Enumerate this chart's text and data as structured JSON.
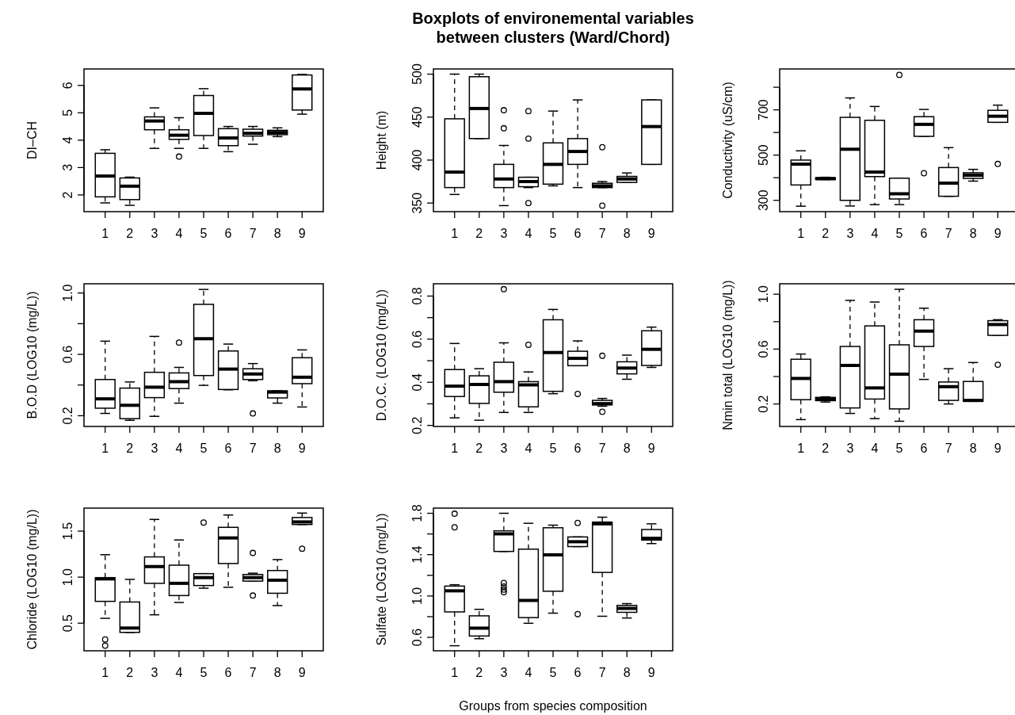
{
  "chart_data": [
    {
      "type": "box",
      "ylabel": "DI–CH",
      "categories": [
        "1",
        "2",
        "3",
        "4",
        "5",
        "6",
        "7",
        "8",
        "9"
      ],
      "ylim": [
        1.39,
        6.6
      ],
      "yticks": [
        2,
        3,
        4,
        5,
        6
      ],
      "boxes": [
        {
          "low": 1.71,
          "q1": 1.93,
          "median": 2.69,
          "q3": 3.52,
          "high": 3.65
        },
        {
          "low": 1.62,
          "q1": 1.83,
          "median": 2.32,
          "q3": 2.62,
          "high": 2.65
        },
        {
          "low": 3.7,
          "q1": 4.38,
          "median": 4.7,
          "q3": 4.85,
          "high": 5.18
        },
        {
          "low": 3.7,
          "q1": 4.03,
          "median": 4.18,
          "q3": 4.38,
          "high": 4.82,
          "outliers": [
            3.4
          ]
        },
        {
          "low": 3.7,
          "q1": 4.17,
          "median": 4.98,
          "q3": 5.63,
          "high": 5.88
        },
        {
          "low": 3.58,
          "q1": 3.8,
          "median": 4.08,
          "q3": 4.42,
          "high": 4.5
        },
        {
          "low": 3.85,
          "q1": 4.15,
          "median": 4.25,
          "q3": 4.4,
          "high": 4.5
        },
        {
          "low": 4.13,
          "q1": 4.2,
          "median": 4.28,
          "q3": 4.36,
          "high": 4.45
        },
        {
          "low": 4.95,
          "q1": 5.1,
          "median": 5.87,
          "q3": 6.38,
          "high": 6.4
        }
      ]
    },
    {
      "type": "box",
      "title": "Boxplots of environemental variables\nbetween clusters (Ward/Chord)",
      "ylabel": "Height (m)",
      "categories": [
        "1",
        "2",
        "3",
        "4",
        "5",
        "6",
        "7",
        "8",
        "9"
      ],
      "ylim": [
        340,
        506
      ],
      "yticks": [
        350,
        400,
        450,
        500
      ],
      "boxes": [
        {
          "low": 360,
          "q1": 368,
          "median": 386,
          "q3": 448,
          "high": 500
        },
        {
          "low": 425,
          "q1": 425,
          "median": 460,
          "q3": 497,
          "high": 500
        },
        {
          "low": 347,
          "q1": 368,
          "median": 378,
          "q3": 395,
          "high": 417,
          "outliers": [
            437,
            458
          ]
        },
        {
          "low": 368,
          "q1": 369,
          "median": 375,
          "q3": 380,
          "high": 380,
          "outliers": [
            350,
            425,
            457
          ]
        },
        {
          "low": 370,
          "q1": 372,
          "median": 395,
          "q3": 420,
          "high": 457
        },
        {
          "low": 368,
          "q1": 395,
          "median": 410,
          "q3": 425,
          "high": 470
        },
        {
          "low": 368,
          "q1": 368,
          "median": 370,
          "q3": 373,
          "high": 375,
          "outliers": [
            347,
            415
          ]
        },
        {
          "low": 374,
          "q1": 374,
          "median": 378,
          "q3": 381,
          "high": 385
        },
        {
          "low": 395,
          "q1": 395,
          "median": 439,
          "q3": 470,
          "high": 470
        }
      ]
    },
    {
      "type": "box",
      "ylabel": "Conductivity (uS/cm)",
      "categories": [
        "1",
        "2",
        "3",
        "4",
        "5",
        "6",
        "7",
        "8",
        "9"
      ],
      "ylim": [
        250,
        881
      ],
      "yticks": [
        300,
        {
          "value": 400,
          "label": null
        },
        500,
        {
          "value": 600,
          "label": null
        },
        700,
        {
          "value": 800,
          "label": null
        }
      ],
      "boxes": [
        {
          "low": 274,
          "q1": 368,
          "median": 460,
          "q3": 478,
          "high": 519
        },
        {
          "low": 392,
          "q1": 392,
          "median": 396,
          "q3": 400,
          "high": 402
        },
        {
          "low": 275,
          "q1": 300,
          "median": 526,
          "q3": 667,
          "high": 753
        },
        {
          "low": 281,
          "q1": 405,
          "median": 425,
          "q3": 654,
          "high": 715
        },
        {
          "low": 281,
          "q1": 306,
          "median": 329,
          "q3": 398,
          "high": 398,
          "outliers": [
            855
          ]
        },
        {
          "low": 583,
          "q1": 583,
          "median": 636,
          "q3": 670,
          "high": 702,
          "outliers": [
            420
          ]
        },
        {
          "low": 318,
          "q1": 318,
          "median": 376,
          "q3": 445,
          "high": 533
        },
        {
          "low": 385,
          "q1": 397,
          "median": 411,
          "q3": 422,
          "high": 437
        },
        {
          "low": 645,
          "q1": 645,
          "median": 672,
          "q3": 698,
          "high": 721,
          "outliers": [
            461
          ]
        }
      ]
    },
    {
      "type": "box",
      "ylabel": "B.O.D (LOG10 (mg/L))",
      "categories": [
        "1",
        "2",
        "3",
        "4",
        "5",
        "6",
        "7",
        "8",
        "9"
      ],
      "ylim": [
        0.13,
        1.06
      ],
      "yticks": [
        0.2,
        {
          "value": 0.4,
          "label": null
        },
        0.6,
        {
          "value": 0.8,
          "label": null
        },
        {
          "value": 1,
          "label": "1.0"
        }
      ],
      "boxes": [
        {
          "low": 0.215,
          "q1": 0.249,
          "median": 0.31,
          "q3": 0.436,
          "high": 0.686
        },
        {
          "low": 0.17,
          "q1": 0.181,
          "median": 0.268,
          "q3": 0.38,
          "high": 0.42
        },
        {
          "low": 0.196,
          "q1": 0.318,
          "median": 0.386,
          "q3": 0.483,
          "high": 0.717
        },
        {
          "low": 0.282,
          "q1": 0.377,
          "median": 0.422,
          "q3": 0.479,
          "high": 0.515,
          "outliers": [
            0.677
          ]
        },
        {
          "low": 0.398,
          "q1": 0.462,
          "median": 0.702,
          "q3": 0.926,
          "high": 1.023
        },
        {
          "low": 0.369,
          "q1": 0.371,
          "median": 0.504,
          "q3": 0.622,
          "high": 0.667
        },
        {
          "low": 0.428,
          "q1": 0.436,
          "median": 0.472,
          "q3": 0.506,
          "high": 0.54,
          "outliers": [
            0.215
          ]
        },
        {
          "low": 0.282,
          "q1": 0.316,
          "median": 0.354,
          "q3": 0.362,
          "high": 0.362
        },
        {
          "low": 0.257,
          "q1": 0.409,
          "median": 0.451,
          "q3": 0.578,
          "high": 0.629
        }
      ]
    },
    {
      "type": "box",
      "ylabel": "D.O.C. (LOG10 (mg/L))",
      "categories": [
        "1",
        "2",
        "3",
        "4",
        "5",
        "6",
        "7",
        "8",
        "9"
      ],
      "ylim": [
        0.195,
        0.857
      ],
      "yticks": [
        0.2,
        {
          "value": 0.3,
          "label": null
        },
        0.4,
        {
          "value": 0.5,
          "label": null
        },
        0.6,
        {
          "value": 0.7,
          "label": null
        },
        0.8
      ],
      "boxes": [
        {
          "low": 0.235,
          "q1": 0.334,
          "median": 0.382,
          "q3": 0.459,
          "high": 0.58
        },
        {
          "low": 0.224,
          "q1": 0.302,
          "median": 0.39,
          "q3": 0.43,
          "high": 0.463
        },
        {
          "low": 0.26,
          "q1": 0.354,
          "median": 0.403,
          "q3": 0.493,
          "high": 0.583,
          "outliers": [
            0.832
          ]
        },
        {
          "low": 0.26,
          "q1": 0.286,
          "median": 0.388,
          "q3": 0.403,
          "high": 0.448,
          "outliers": [
            0.574
          ]
        },
        {
          "low": 0.347,
          "q1": 0.358,
          "median": 0.538,
          "q3": 0.69,
          "high": 0.738
        },
        {
          "low": 0.477,
          "q1": 0.477,
          "median": 0.511,
          "q3": 0.544,
          "high": 0.592,
          "outliers": [
            0.346
          ]
        },
        {
          "low": 0.289,
          "q1": 0.295,
          "median": 0.301,
          "q3": 0.316,
          "high": 0.325,
          "outliers": [
            0.523,
            0.263
          ]
        },
        {
          "low": 0.414,
          "q1": 0.439,
          "median": 0.466,
          "q3": 0.495,
          "high": 0.526
        },
        {
          "low": 0.469,
          "q1": 0.478,
          "median": 0.553,
          "q3": 0.639,
          "high": 0.656
        }
      ]
    },
    {
      "type": "box",
      "ylabel": "Nmin total (LOG10 (mg/L))",
      "categories": [
        "1",
        "2",
        "3",
        "4",
        "5",
        "6",
        "7",
        "8",
        "9"
      ],
      "ylim": [
        0.036,
        1.076
      ],
      "yticks": [
        0.2,
        {
          "value": 0.4,
          "label": null
        },
        0.6,
        {
          "value": 0.8,
          "label": null
        },
        {
          "value": 1,
          "label": "1.0"
        }
      ],
      "boxes": [
        {
          "low": 0.086,
          "q1": 0.231,
          "median": 0.386,
          "q3": 0.526,
          "high": 0.564
        },
        {
          "low": 0.214,
          "q1": 0.224,
          "median": 0.236,
          "q3": 0.248,
          "high": 0.252
        },
        {
          "low": 0.131,
          "q1": 0.171,
          "median": 0.481,
          "q3": 0.619,
          "high": 0.955
        },
        {
          "low": 0.093,
          "q1": 0.236,
          "median": 0.317,
          "q3": 0.769,
          "high": 0.943
        },
        {
          "low": 0.074,
          "q1": 0.164,
          "median": 0.417,
          "q3": 0.631,
          "high": 1.036
        },
        {
          "low": 0.379,
          "q1": 0.619,
          "median": 0.731,
          "q3": 0.814,
          "high": 0.898
        },
        {
          "low": 0.2,
          "q1": 0.226,
          "median": 0.326,
          "q3": 0.36,
          "high": 0.457
        },
        {
          "low": 0.219,
          "q1": 0.219,
          "median": 0.226,
          "q3": 0.364,
          "high": 0.502
        },
        {
          "low": 0.7,
          "q1": 0.7,
          "median": 0.779,
          "q3": 0.807,
          "high": 0.814,
          "outliers": [
            0.486
          ]
        }
      ]
    },
    {
      "type": "box",
      "ylabel": "Chloride (LOG10 (mg/L))",
      "categories": [
        "1",
        "2",
        "3",
        "4",
        "5",
        "6",
        "7",
        "8",
        "9"
      ],
      "ylim": [
        0.2,
        1.75
      ],
      "yticks": [
        0.5,
        {
          "value": 1,
          "label": "1.0"
        },
        1.5
      ],
      "boxes": [
        {
          "low": 0.553,
          "q1": 0.737,
          "median": 0.981,
          "q3": 0.995,
          "high": 1.244,
          "outliers": [
            0.323,
            0.256
          ]
        },
        {
          "low": 0.4,
          "q1": 0.4,
          "median": 0.447,
          "q3": 0.73,
          "high": 0.976
        },
        {
          "low": 0.591,
          "q1": 0.933,
          "median": 1.115,
          "q3": 1.22,
          "high": 1.627
        },
        {
          "low": 0.725,
          "q1": 0.8,
          "median": 0.933,
          "q3": 1.13,
          "high": 1.404
        },
        {
          "low": 0.88,
          "q1": 0.909,
          "median": 0.995,
          "q3": 1.038,
          "high": 1.038,
          "outliers": [
            1.593
          ]
        },
        {
          "low": 0.89,
          "q1": 1.148,
          "median": 1.426,
          "q3": 1.541,
          "high": 1.675
        },
        {
          "low": 0.957,
          "q1": 0.957,
          "median": 0.995,
          "q3": 1.029,
          "high": 1.043,
          "outliers": [
            1.263,
            0.8
          ]
        },
        {
          "low": 0.691,
          "q1": 0.825,
          "median": 0.967,
          "q3": 1.072,
          "high": 1.191
        },
        {
          "low": 1.572,
          "q1": 1.572,
          "median": 1.6,
          "q3": 1.648,
          "high": 1.696,
          "outliers": [
            1.309
          ]
        }
      ]
    },
    {
      "type": "box",
      "ylabel": "Sulfate (LOG10 (mg/L))",
      "xlabel": "Groups from species composition",
      "categories": [
        "1",
        "2",
        "3",
        "4",
        "5",
        "6",
        "7",
        "8",
        "9"
      ],
      "ylim": [
        0.47,
        1.85
      ],
      "yticks": [
        0.6,
        {
          "value": 0.8,
          "label": null
        },
        {
          "value": 1,
          "label": "1.0"
        },
        {
          "value": 1.2,
          "label": null
        },
        1.4,
        {
          "value": 1.6,
          "label": null
        },
        1.8
      ],
      "boxes": [
        {
          "low": 0.519,
          "q1": 0.846,
          "median": 1.05,
          "q3": 1.096,
          "high": 1.109,
          "outliers": [
            1.796,
            1.664
          ]
        },
        {
          "low": 0.587,
          "q1": 0.613,
          "median": 0.689,
          "q3": 0.808,
          "high": 0.871
        },
        {
          "low": 1.431,
          "q1": 1.431,
          "median": 1.601,
          "q3": 1.63,
          "high": 1.8,
          "outliers": [
            1.126,
            1.092,
            1.062,
            1.037
          ]
        },
        {
          "low": 0.736,
          "q1": 0.791,
          "median": 0.957,
          "q3": 1.453,
          "high": 1.703
        },
        {
          "low": 0.834,
          "q1": 1.046,
          "median": 1.398,
          "q3": 1.66,
          "high": 1.685
        },
        {
          "low": 1.478,
          "q1": 1.478,
          "median": 1.525,
          "q3": 1.571,
          "high": 1.571,
          "outliers": [
            1.707,
            0.825
          ]
        },
        {
          "low": 0.804,
          "q1": 1.228,
          "median": 1.698,
          "q3": 1.715,
          "high": 1.762
        },
        {
          "low": 0.787,
          "q1": 0.842,
          "median": 0.88,
          "q3": 0.909,
          "high": 0.926
        },
        {
          "low": 1.507,
          "q1": 1.541,
          "median": 1.558,
          "q3": 1.643,
          "high": 1.698
        }
      ]
    }
  ]
}
